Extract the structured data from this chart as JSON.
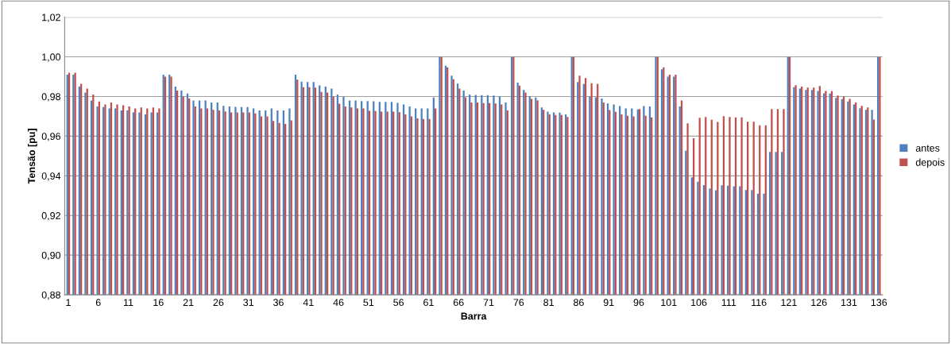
{
  "chart_data": {
    "type": "bar",
    "xlabel": "Barra",
    "ylabel": "Tensão [pu]",
    "categories": [
      "1",
      null,
      null,
      null,
      null,
      "6",
      null,
      null,
      null,
      null,
      "11",
      null,
      null,
      null,
      null,
      "16",
      null,
      null,
      null,
      null,
      "21",
      null,
      null,
      null,
      null,
      "26",
      null,
      null,
      null,
      null,
      "31",
      null,
      null,
      null,
      null,
      "36",
      null,
      null,
      null,
      null,
      "41",
      null,
      null,
      null,
      null,
      "46",
      null,
      null,
      null,
      null,
      "51",
      null,
      null,
      null,
      null,
      "56",
      null,
      null,
      null,
      null,
      "61",
      null,
      null,
      null,
      null,
      "66",
      null,
      null,
      null,
      null,
      "71",
      null,
      null,
      null,
      null,
      "76",
      null,
      null,
      null,
      null,
      "81",
      null,
      null,
      null,
      null,
      "86",
      null,
      null,
      null,
      null,
      "91",
      null,
      null,
      null,
      null,
      "96",
      null,
      null,
      null,
      null,
      "101",
      null,
      null,
      null,
      null,
      "106",
      null,
      null,
      null,
      null,
      "111",
      null,
      null,
      null,
      null,
      "116",
      null,
      null,
      null,
      null,
      "121",
      null,
      null,
      null,
      null,
      "126",
      null,
      null,
      null,
      null,
      "131",
      null,
      null,
      null,
      null,
      "136"
    ],
    "series": [
      {
        "name": "antes",
        "color": "#4f81bd",
        "values": [
          0.991,
          0.991,
          0.985,
          0.982,
          0.978,
          0.975,
          0.9747,
          0.974,
          0.974,
          0.973,
          0.973,
          0.972,
          0.972,
          0.971,
          0.972,
          0.972,
          0.991,
          0.991,
          0.985,
          0.983,
          0.9815,
          0.978,
          0.978,
          0.978,
          0.977,
          0.977,
          0.9753,
          0.975,
          0.9748,
          0.9747,
          0.9747,
          0.974,
          0.973,
          0.973,
          0.974,
          0.973,
          0.973,
          0.974,
          0.991,
          0.9875,
          0.9873,
          0.9873,
          0.9856,
          0.985,
          0.984,
          0.981,
          0.98,
          0.978,
          0.978,
          0.9777,
          0.9777,
          0.9776,
          0.9773,
          0.9773,
          0.9773,
          0.9768,
          0.976,
          0.975,
          0.974,
          0.974,
          0.974,
          0.9795,
          1.0,
          0.9955,
          0.9905,
          0.9865,
          0.983,
          0.981,
          0.9808,
          0.9807,
          0.9807,
          0.9805,
          0.98,
          0.977,
          1.0,
          0.987,
          0.9833,
          0.98,
          0.9795,
          0.9745,
          0.9724,
          0.972,
          0.9719,
          0.971,
          1.0,
          0.9873,
          0.9863,
          0.98,
          0.9796,
          0.979,
          0.9765,
          0.976,
          0.9752,
          0.974,
          0.974,
          0.9735,
          0.9752,
          0.975,
          1.0,
          0.9937,
          0.99,
          0.99,
          0.975,
          0.9527,
          0.9392,
          0.937,
          0.9353,
          0.9336,
          0.9327,
          0.9352,
          0.935,
          0.9347,
          0.9347,
          0.9328,
          0.9328,
          0.931,
          0.931,
          0.952,
          0.952,
          0.952,
          1.0,
          0.9847,
          0.984,
          0.9833,
          0.9833,
          0.9828,
          0.9816,
          0.9815,
          0.9793,
          0.9787,
          0.9775,
          0.976,
          0.9741,
          0.9733,
          0.9733,
          1.0
        ]
      },
      {
        "name": "depois",
        "color": "#c0504d",
        "values": [
          0.992,
          0.992,
          0.9864,
          0.984,
          0.981,
          0.9775,
          0.976,
          0.977,
          0.976,
          0.9756,
          0.975,
          0.974,
          0.9745,
          0.974,
          0.9745,
          0.974,
          0.99,
          0.99,
          0.983,
          0.98,
          0.979,
          0.975,
          0.974,
          0.974,
          0.9733,
          0.973,
          0.9725,
          0.972,
          0.972,
          0.972,
          0.972,
          0.9715,
          0.97,
          0.97,
          0.9677,
          0.9667,
          0.9662,
          0.968,
          0.9885,
          0.9847,
          0.9847,
          0.9845,
          0.9823,
          0.982,
          0.98,
          0.9764,
          0.975,
          0.9745,
          0.974,
          0.974,
          0.9728,
          0.9727,
          0.9724,
          0.9724,
          0.9724,
          0.9721,
          0.971,
          0.97,
          0.969,
          0.9687,
          0.9687,
          0.974,
          1.0,
          0.9947,
          0.9887,
          0.984,
          0.9796,
          0.977,
          0.977,
          0.9767,
          0.9767,
          0.9765,
          0.976,
          0.973,
          1.0,
          0.9855,
          0.982,
          0.9788,
          0.9781,
          0.9733,
          0.971,
          0.9707,
          0.9707,
          0.9697,
          1.0,
          0.9905,
          0.9893,
          0.9867,
          0.9864,
          0.977,
          0.9732,
          0.9723,
          0.971,
          0.9703,
          0.97,
          0.9737,
          0.9703,
          0.9695,
          1.0,
          0.9947,
          0.991,
          0.991,
          0.978,
          0.9665,
          0.959,
          0.9693,
          0.9697,
          0.9683,
          0.9672,
          0.9701,
          0.9697,
          0.9695,
          0.9695,
          0.9673,
          0.9673,
          0.9655,
          0.9655,
          0.9737,
          0.9737,
          0.9737,
          1.0,
          0.9857,
          0.985,
          0.9845,
          0.9845,
          0.9853,
          0.9828,
          0.9827,
          0.9805,
          0.98,
          0.9788,
          0.977,
          0.9753,
          0.9745,
          0.9684,
          1.0
        ]
      }
    ],
    "ylim": [
      0.88,
      1.02
    ],
    "yticks": [
      {
        "value": 0.88,
        "label": "0,88"
      },
      {
        "value": 0.9,
        "label": "0,90"
      },
      {
        "value": 0.92,
        "label": "0,92"
      },
      {
        "value": 0.94,
        "label": "0,94"
      },
      {
        "value": 0.96,
        "label": "0,96"
      },
      {
        "value": 0.98,
        "label": "0,98"
      },
      {
        "value": 1.0,
        "label": "1,00"
      },
      {
        "value": 1.02,
        "label": "1,02"
      }
    ],
    "grid": "y",
    "legend": "right"
  }
}
